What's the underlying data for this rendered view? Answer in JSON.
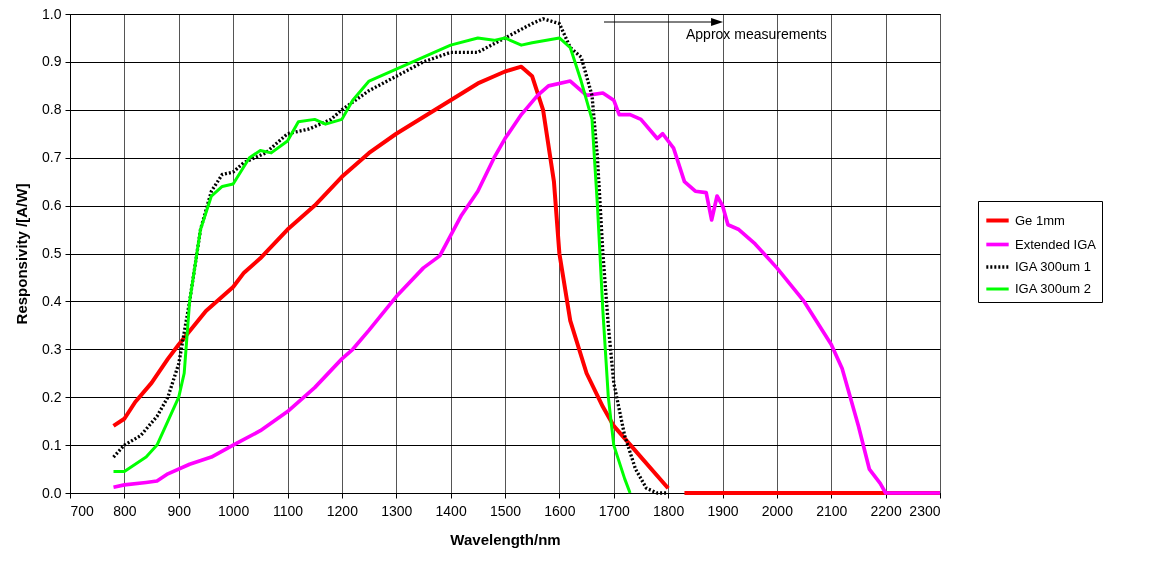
{
  "chart_data": {
    "type": "line",
    "xlabel": "Wavelength/nm",
    "ylabel": "Responsivity /[A/W]",
    "xlim": [
      700,
      2300
    ],
    "xticks": [
      700,
      800,
      900,
      1000,
      1100,
      1200,
      1300,
      1400,
      1500,
      1600,
      1700,
      1800,
      1900,
      2000,
      2100,
      2200,
      2300
    ],
    "ylim": [
      0,
      1
    ],
    "yticks": [
      {
        "value": 0,
        "label": "0.0"
      },
      {
        "value": 0.1,
        "label": "0.1"
      },
      {
        "value": 0.2,
        "label": "0.2"
      },
      {
        "value": 0.3,
        "label": "0.3"
      },
      {
        "value": 0.4,
        "label": "0.4"
      },
      {
        "value": 0.5,
        "label": "0.5"
      },
      {
        "value": 0.6,
        "label": "0.6"
      },
      {
        "value": 0.7,
        "label": "0.7"
      },
      {
        "value": 0.8,
        "label": "0.8"
      },
      {
        "value": 0.9,
        "label": "0.9"
      },
      {
        "value": 1,
        "label": "1.0"
      }
    ],
    "grid": true,
    "legend": "right",
    "marker": "none",
    "annotations": [
      "Approx measurements"
    ],
    "series": [
      {
        "name": "Ge 1mm",
        "color": "#ff0000",
        "line_style": "solid",
        "x": [
          780,
          800,
          820,
          850,
          880,
          900,
          950,
          1000,
          1020,
          1050,
          1100,
          1150,
          1200,
          1250,
          1300,
          1350,
          1400,
          1450,
          1480,
          1500,
          1530,
          1550,
          1570,
          1590,
          1600,
          1620,
          1650,
          1680,
          1700,
          1750,
          1800,
          1815,
          1830,
          2300
        ],
        "values": [
          0.14,
          0.155,
          0.19,
          0.23,
          0.28,
          0.31,
          0.38,
          0.43,
          0.46,
          0.49,
          0.55,
          0.6,
          0.66,
          0.71,
          0.75,
          0.785,
          0.82,
          0.855,
          0.87,
          0.88,
          0.89,
          0.87,
          0.8,
          0.65,
          0.5,
          0.36,
          0.25,
          0.18,
          0.14,
          0.075,
          0.01,
          null,
          0,
          0
        ]
      },
      {
        "name": "Extended IGA",
        "color": "#ff00ff",
        "line_style": "solid",
        "x": [
          780,
          800,
          840,
          860,
          880,
          920,
          960,
          1000,
          1050,
          1100,
          1150,
          1200,
          1220,
          1250,
          1300,
          1350,
          1380,
          1420,
          1450,
          1480,
          1500,
          1530,
          1560,
          1580,
          1620,
          1650,
          1680,
          1700,
          1710,
          1730,
          1750,
          1780,
          1790,
          1810,
          1830,
          1850,
          1870,
          1880,
          1890,
          1900,
          1910,
          1930,
          1960,
          2000,
          2050,
          2100,
          2120,
          2150,
          2170,
          2190,
          2200,
          2300
        ],
        "values": [
          0.012,
          0.017,
          0.022,
          0.025,
          0.04,
          0.06,
          0.075,
          0.1,
          0.13,
          0.17,
          0.22,
          0.28,
          0.3,
          0.34,
          0.41,
          0.47,
          0.495,
          0.58,
          0.63,
          0.7,
          0.74,
          0.79,
          0.83,
          0.85,
          0.86,
          0.83,
          0.835,
          0.82,
          0.79,
          0.79,
          0.78,
          0.74,
          0.75,
          0.72,
          0.65,
          0.63,
          0.627,
          0.57,
          0.62,
          0.6,
          0.56,
          0.55,
          0.52,
          0.47,
          0.4,
          0.31,
          0.26,
          0.14,
          0.05,
          0.02,
          0,
          0
        ]
      },
      {
        "name": "IGA 300um 1",
        "color": "#000000",
        "line_style": "dotted",
        "x": [
          780,
          800,
          830,
          860,
          880,
          900,
          920,
          940,
          960,
          980,
          1000,
          1020,
          1060,
          1100,
          1140,
          1180,
          1200,
          1250,
          1300,
          1350,
          1400,
          1450,
          1500,
          1550,
          1570,
          1600,
          1620,
          1640,
          1660,
          1670,
          1680,
          1690,
          1700,
          1720,
          1740,
          1760,
          1780,
          1800
        ],
        "values": [
          0.075,
          0.1,
          0.12,
          0.16,
          0.2,
          0.27,
          0.4,
          0.55,
          0.63,
          0.665,
          0.67,
          0.69,
          0.71,
          0.75,
          0.76,
          0.78,
          0.8,
          0.84,
          0.87,
          0.9,
          0.92,
          0.92,
          0.95,
          0.98,
          0.99,
          0.98,
          0.93,
          0.91,
          0.83,
          0.7,
          0.5,
          0.35,
          0.23,
          0.12,
          0.05,
          0.01,
          0,
          0
        ]
      },
      {
        "name": "IGA 300um 2",
        "color": "#00ff00",
        "line_style": "solid",
        "x": [
          780,
          800,
          820,
          840,
          860,
          880,
          900,
          910,
          920,
          940,
          960,
          980,
          1000,
          1030,
          1050,
          1070,
          1100,
          1120,
          1150,
          1170,
          1200,
          1220,
          1250,
          1300,
          1350,
          1400,
          1450,
          1480,
          1500,
          1530,
          1550,
          1600,
          1620,
          1640,
          1660,
          1670,
          1680,
          1690,
          1700,
          1720,
          1730
        ],
        "values": [
          0.045,
          0.045,
          0.06,
          0.075,
          0.1,
          0.15,
          0.2,
          0.25,
          0.4,
          0.55,
          0.62,
          0.64,
          0.645,
          0.7,
          0.715,
          0.71,
          0.735,
          0.775,
          0.78,
          0.77,
          0.78,
          0.82,
          0.86,
          0.885,
          0.91,
          0.935,
          0.95,
          0.945,
          0.95,
          0.935,
          0.94,
          0.95,
          0.93,
          0.86,
          0.78,
          0.6,
          0.38,
          0.2,
          0.1,
          0.03,
          0
        ]
      }
    ]
  }
}
